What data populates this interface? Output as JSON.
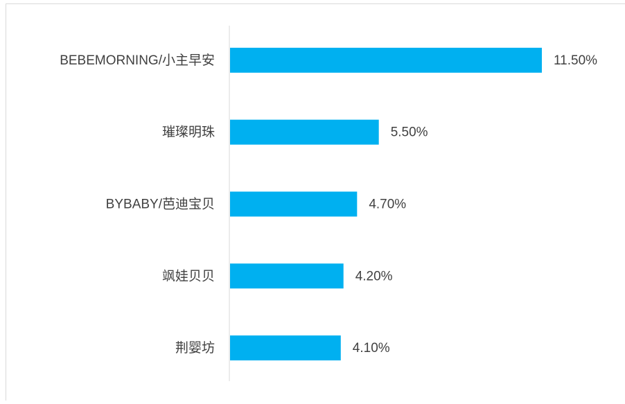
{
  "chart_data": {
    "type": "barh",
    "categories": [
      "BEBEMORNING/小主早安",
      "璀璨明珠",
      "BYBABY/芭迪宝贝",
      "飒娃贝贝",
      "荆婴坊"
    ],
    "values": [
      11.5,
      5.5,
      4.7,
      4.2,
      4.1
    ],
    "value_labels": [
      "11.50%",
      "5.50%",
      "4.70%",
      "4.20%",
      "4.10%"
    ],
    "color": "#00b0f0"
  }
}
